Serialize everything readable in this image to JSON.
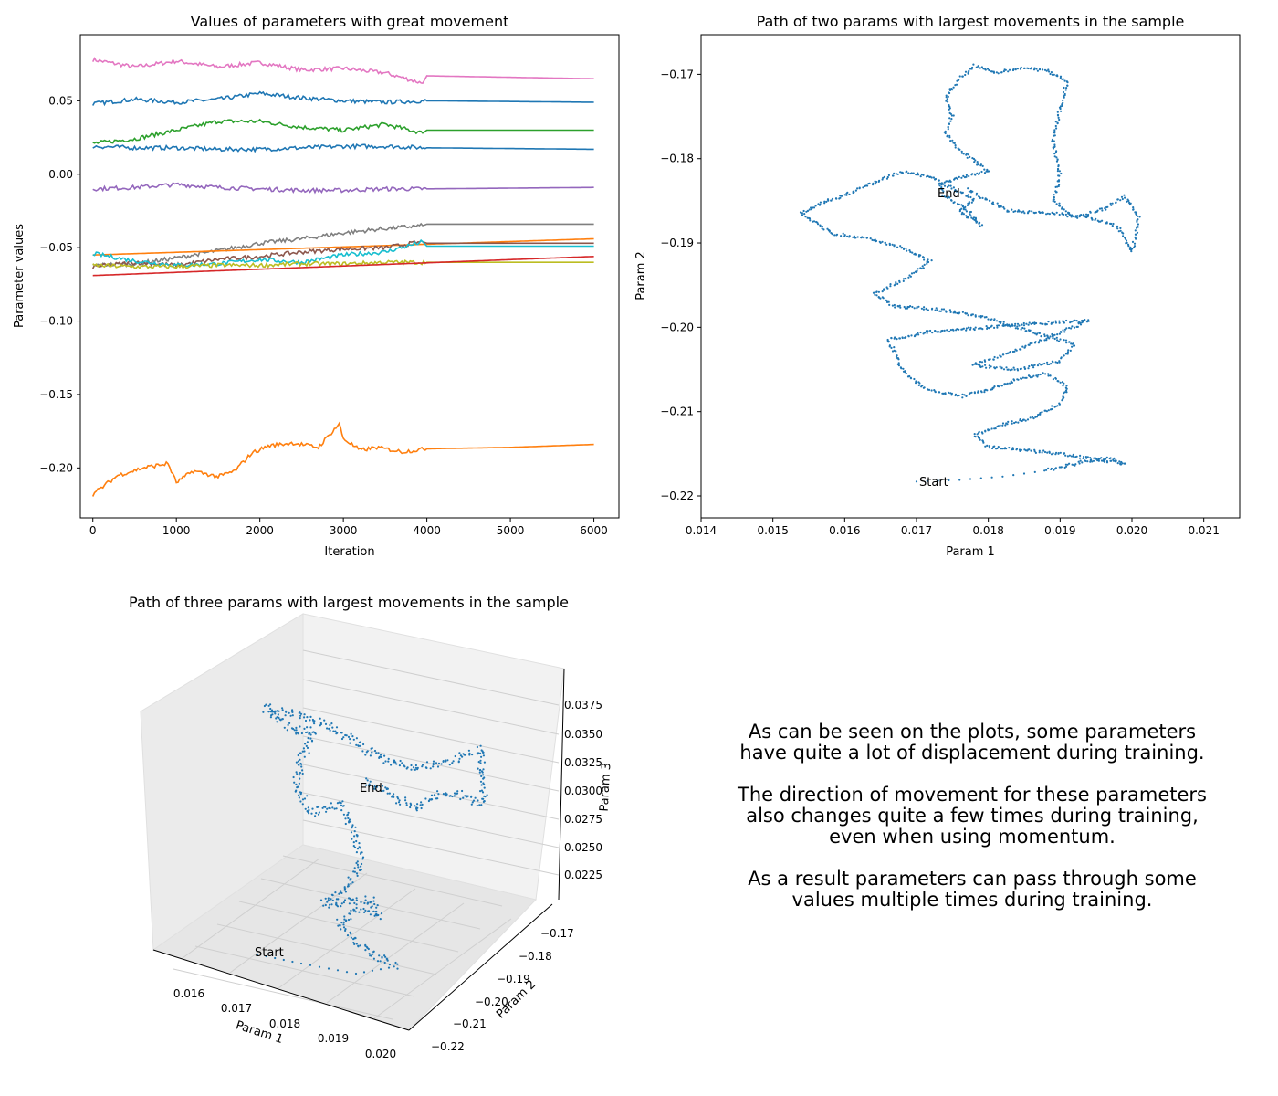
{
  "chart_data": [
    {
      "type": "line",
      "title": "Values of parameters with great movement",
      "xlabel": "Iteration",
      "ylabel": "Parameter values",
      "xlim": [
        -150,
        6300
      ],
      "ylim": [
        -0.234,
        0.095
      ],
      "xticks": [
        0,
        1000,
        2000,
        3000,
        4000,
        5000,
        6000
      ],
      "xtick_labels": [
        "0",
        "1000",
        "2000",
        "3000",
        "4000",
        "5000",
        "6000"
      ],
      "yticks": [
        0.05,
        0.0,
        -0.05,
        -0.1,
        -0.15,
        -0.2
      ],
      "ytick_labels": [
        "0.05",
        "0.00",
        "−0.05",
        "−0.10",
        "−0.15",
        "−0.20"
      ],
      "grid": false,
      "series": [
        {
          "color": "#e377c2",
          "x": [
            0,
            500,
            1000,
            1500,
            2000,
            2500,
            3000,
            3500,
            3950,
            4000,
            6000
          ],
          "y": [
            0.078,
            0.073,
            0.077,
            0.073,
            0.076,
            0.071,
            0.072,
            0.069,
            0.062,
            0.067,
            0.065
          ]
        },
        {
          "color": "#1f77b4",
          "x": [
            0,
            500,
            1000,
            1500,
            2000,
            2500,
            3000,
            3500,
            4000,
            6000
          ],
          "y": [
            0.048,
            0.051,
            0.049,
            0.051,
            0.055,
            0.052,
            0.05,
            0.049,
            0.05,
            0.049
          ]
        },
        {
          "color": "#2ca02c",
          "x": [
            0,
            500,
            1000,
            1500,
            2000,
            2500,
            3000,
            3500,
            3950,
            4000,
            6000
          ],
          "y": [
            0.021,
            0.024,
            0.03,
            0.036,
            0.036,
            0.032,
            0.03,
            0.034,
            0.028,
            0.03,
            0.03
          ]
        },
        {
          "color": "#1f77b4",
          "x": [
            0,
            500,
            1000,
            1500,
            2000,
            2500,
            3000,
            3500,
            4000,
            6000
          ],
          "y": [
            0.019,
            0.018,
            0.018,
            0.017,
            0.017,
            0.018,
            0.019,
            0.019,
            0.018,
            0.017
          ]
        },
        {
          "color": "#9467bd",
          "x": [
            0,
            500,
            1000,
            1500,
            2000,
            2500,
            3000,
            3500,
            4000,
            6000
          ],
          "y": [
            -0.01,
            -0.009,
            -0.007,
            -0.009,
            -0.01,
            -0.011,
            -0.011,
            -0.01,
            -0.01,
            -0.009
          ]
        },
        {
          "color": "#7f7f7f",
          "x": [
            0,
            500,
            1000,
            1500,
            2000,
            2500,
            3000,
            3500,
            3950,
            4000,
            6000
          ],
          "y": [
            -0.062,
            -0.061,
            -0.057,
            -0.052,
            -0.047,
            -0.044,
            -0.04,
            -0.037,
            -0.035,
            -0.034,
            -0.034
          ]
        },
        {
          "color": "#ff7f0e",
          "x": [
            0,
            6000
          ],
          "y": [
            -0.055,
            -0.044
          ]
        },
        {
          "color": "#8c564b",
          "x": [
            0,
            500,
            1000,
            1500,
            2000,
            2500,
            3000,
            3500,
            3950,
            4000,
            6000
          ],
          "y": [
            -0.063,
            -0.06,
            -0.062,
            -0.058,
            -0.056,
            -0.053,
            -0.051,
            -0.05,
            -0.046,
            -0.047,
            -0.047
          ]
        },
        {
          "color": "#17becf",
          "x": [
            0,
            500,
            1000,
            1500,
            2000,
            2500,
            3000,
            3500,
            3950,
            4000,
            6000
          ],
          "y": [
            -0.054,
            -0.059,
            -0.062,
            -0.061,
            -0.058,
            -0.06,
            -0.055,
            -0.053,
            -0.046,
            -0.049,
            -0.049
          ]
        },
        {
          "color": "#bcbd22",
          "x": [
            0,
            500,
            1000,
            1500,
            2000,
            2500,
            3000,
            3500,
            4000,
            6000
          ],
          "y": [
            -0.062,
            -0.063,
            -0.063,
            -0.062,
            -0.062,
            -0.061,
            -0.061,
            -0.06,
            -0.06,
            -0.06
          ]
        },
        {
          "color": "#d62728",
          "x": [
            0,
            6000
          ],
          "y": [
            -0.069,
            -0.056
          ]
        },
        {
          "color": "#ff7f0e",
          "x": [
            0,
            300,
            600,
            900,
            1000,
            1200,
            1500,
            1700,
            1900,
            2100,
            2400,
            2700,
            2950,
            3000,
            3200,
            3400,
            3700,
            4000,
            5000,
            6000
          ],
          "y": [
            -0.218,
            -0.205,
            -0.2,
            -0.197,
            -0.21,
            -0.202,
            -0.206,
            -0.202,
            -0.19,
            -0.185,
            -0.183,
            -0.186,
            -0.17,
            -0.18,
            -0.188,
            -0.186,
            -0.189,
            -0.187,
            -0.186,
            -0.184
          ]
        }
      ]
    },
    {
      "type": "scatter",
      "title": "Path of two params with largest movements in the sample",
      "xlabel": "Param 1",
      "ylabel": "Param 2",
      "xlim": [
        0.014,
        0.0215
      ],
      "ylim": [
        -0.2226,
        -0.1653
      ],
      "xticks": [
        0.014,
        0.015,
        0.016,
        0.017,
        0.018,
        0.019,
        0.02,
        0.021
      ],
      "xtick_labels": [
        "0.014",
        "0.015",
        "0.016",
        "0.017",
        "0.018",
        "0.019",
        "0.020",
        "0.021"
      ],
      "yticks": [
        -0.17,
        -0.18,
        -0.19,
        -0.2,
        -0.21,
        -0.22
      ],
      "ytick_labels": [
        "−0.17",
        "−0.18",
        "−0.19",
        "−0.20",
        "−0.21",
        "−0.22"
      ],
      "color": "#1f77b4",
      "annotations": [
        {
          "text": "Start",
          "x": 0.017,
          "y": -0.2182
        },
        {
          "text": "End",
          "x": 0.01728,
          "y": -0.1838
        }
      ],
      "path": [
        [
          0.017,
          -0.2183
        ],
        [
          0.0176,
          -0.2181
        ],
        [
          0.0182,
          -0.2177
        ],
        [
          0.0188,
          -0.217
        ],
        [
          0.0193,
          -0.216
        ],
        [
          0.0197,
          -0.2155
        ],
        [
          0.0199,
          -0.2162
        ],
        [
          0.0196,
          -0.2158
        ],
        [
          0.019,
          -0.215
        ],
        [
          0.0184,
          -0.2145
        ],
        [
          0.018,
          -0.2142
        ],
        [
          0.0178,
          -0.2128
        ],
        [
          0.0182,
          -0.2115
        ],
        [
          0.0186,
          -0.2108
        ],
        [
          0.019,
          -0.209
        ],
        [
          0.0191,
          -0.207
        ],
        [
          0.0188,
          -0.2055
        ],
        [
          0.0184,
          -0.2062
        ],
        [
          0.018,
          -0.2075
        ],
        [
          0.0176,
          -0.2082
        ],
        [
          0.0171,
          -0.2072
        ],
        [
          0.0168,
          -0.205
        ],
        [
          0.0167,
          -0.203
        ],
        [
          0.0166,
          -0.2015
        ],
        [
          0.0172,
          -0.2005
        ],
        [
          0.018,
          -0.2
        ],
        [
          0.0188,
          -0.1995
        ],
        [
          0.0194,
          -0.1992
        ],
        [
          0.0189,
          -0.201
        ],
        [
          0.0183,
          -0.203
        ],
        [
          0.0178,
          -0.2045
        ],
        [
          0.0184,
          -0.205
        ],
        [
          0.019,
          -0.204
        ],
        [
          0.0192,
          -0.202
        ],
        [
          0.0186,
          -0.2005
        ],
        [
          0.0178,
          -0.1985
        ],
        [
          0.0172,
          -0.1978
        ],
        [
          0.0167,
          -0.1975
        ],
        [
          0.0164,
          -0.196
        ],
        [
          0.0168,
          -0.1945
        ],
        [
          0.0172,
          -0.1922
        ],
        [
          0.0168,
          -0.1905
        ],
        [
          0.0163,
          -0.1895
        ],
        [
          0.0158,
          -0.1888
        ],
        [
          0.0154,
          -0.1865
        ],
        [
          0.0157,
          -0.1852
        ],
        [
          0.0161,
          -0.184
        ],
        [
          0.0165,
          -0.1825
        ],
        [
          0.0168,
          -0.1815
        ],
        [
          0.0172,
          -0.1822
        ],
        [
          0.0175,
          -0.1836
        ],
        [
          0.0178,
          -0.1848
        ],
        [
          0.0176,
          -0.1862
        ],
        [
          0.0179,
          -0.188
        ],
        [
          0.0177,
          -0.186
        ],
        [
          0.0174,
          -0.1845
        ],
        [
          0.0173,
          -0.183
        ],
        [
          0.018,
          -0.1815
        ],
        [
          0.0176,
          -0.179
        ],
        [
          0.0174,
          -0.177
        ],
        [
          0.0175,
          -0.1748
        ],
        [
          0.0174,
          -0.1728
        ],
        [
          0.0176,
          -0.1705
        ],
        [
          0.0178,
          -0.169
        ],
        [
          0.0181,
          -0.1698
        ],
        [
          0.0184,
          -0.1693
        ],
        [
          0.0188,
          -0.1695
        ],
        [
          0.0191,
          -0.1708
        ],
        [
          0.019,
          -0.174
        ],
        [
          0.0189,
          -0.178
        ],
        [
          0.019,
          -0.182
        ],
        [
          0.0189,
          -0.185
        ],
        [
          0.0192,
          -0.187
        ],
        [
          0.0196,
          -0.186
        ],
        [
          0.0199,
          -0.1845
        ],
        [
          0.0201,
          -0.187
        ],
        [
          0.02,
          -0.191
        ],
        [
          0.0198,
          -0.188
        ],
        [
          0.0194,
          -0.187
        ],
        [
          0.0189,
          -0.1865
        ],
        [
          0.0183,
          -0.1862
        ],
        [
          0.018,
          -0.185
        ],
        [
          0.0177,
          -0.1836
        ]
      ]
    },
    {
      "type": "scatter3d",
      "title": "Path of three params with largest movements in the sample",
      "xlabel": "Param 1",
      "ylabel": "Param 2",
      "zlabel": "Param 3",
      "xtick_labels": [
        "0.016",
        "0.017",
        "0.018",
        "0.019",
        "0.020"
      ],
      "ytick_labels": [
        "−0.17",
        "−0.18",
        "−0.19",
        "−0.20",
        "−0.21",
        "−0.22"
      ],
      "ztick_labels": [
        "0.0375",
        "0.0350",
        "0.0325",
        "0.0300",
        "0.0275",
        "0.0250",
        "0.0225"
      ],
      "color": "#1f77b4",
      "annotations": [
        {
          "text": "Start"
        },
        {
          "text": "End"
        }
      ]
    }
  ],
  "caption": {
    "p1_l1": "As can be seen on the plots, some parameters",
    "p1_l2": "have quite a lot of displacement during training.",
    "p2_l1": "The direction of movement for these parameters",
    "p2_l2": "also changes quite a few times during training,",
    "p2_l3": "even when using momentum.",
    "p3_l1": "As a result parameters can pass through some",
    "p3_l2": "values multiple times during training."
  }
}
